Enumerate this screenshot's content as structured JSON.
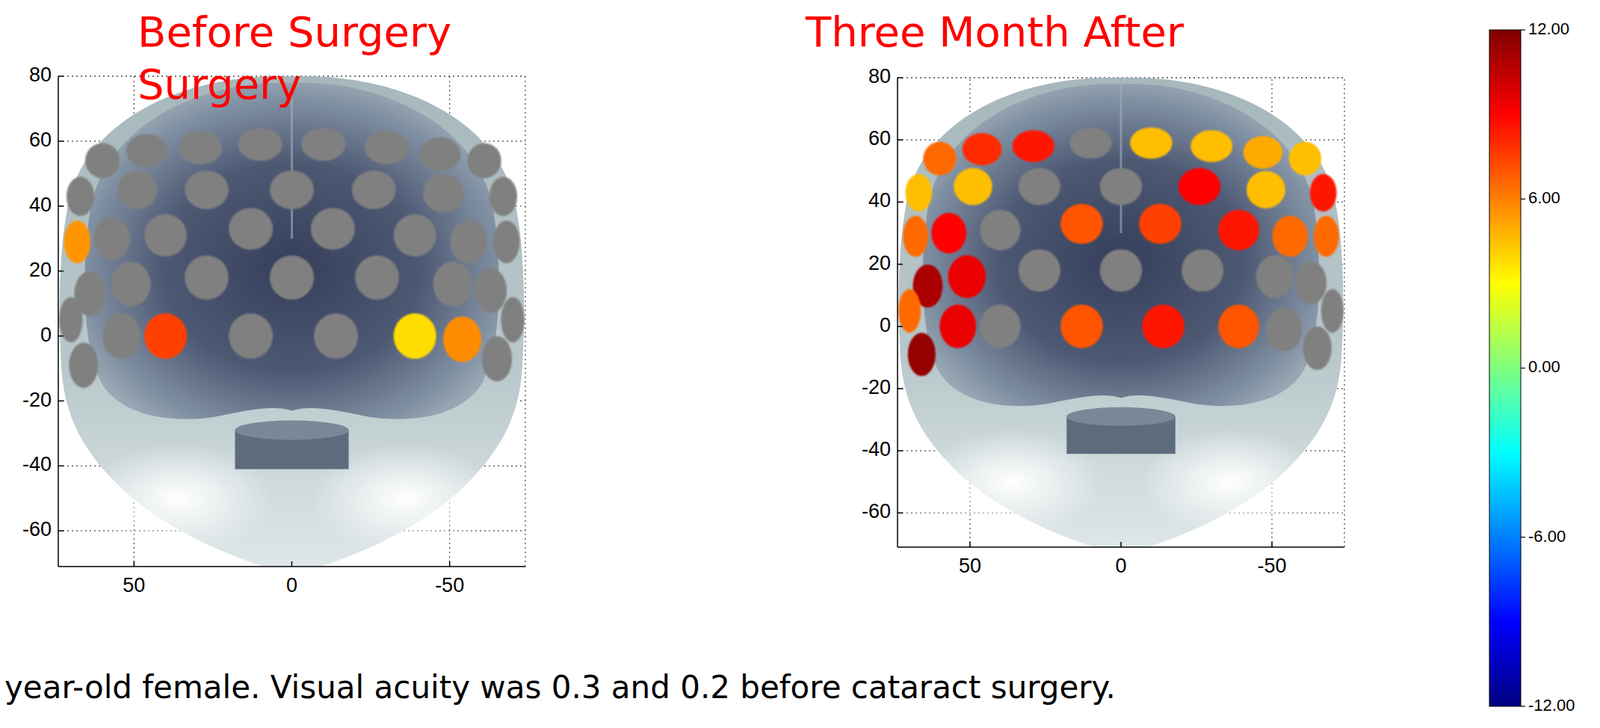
{
  "chart_data": [
    {
      "type": "topographic_map",
      "title": "Before Surgery\nSurgery",
      "x": [
        40,
        13,
        -14,
        -39,
        27,
        0,
        -27,
        40,
        13,
        -13,
        -39,
        27,
        0,
        -26,
        46,
        29,
        10,
        -10,
        -30,
        -47,
        49,
        -48,
        54,
        -54,
        51,
        -51,
        57,
        -56,
        64,
        -63,
        66,
        -65,
        70,
        -70,
        68,
        -68,
        67,
        -67,
        60,
        -61
      ],
      "y": [
        0,
        0,
        0,
        0,
        18,
        18,
        18,
        31,
        33,
        33,
        31,
        45,
        45,
        45,
        57,
        58,
        59,
        59,
        58,
        56,
        45,
        44,
        0,
        -1,
        16,
        16,
        30,
        29,
        13,
        14,
        -9,
        -7,
        5,
        5,
        29,
        29,
        43,
        43,
        54,
        54
      ],
      "values": [
        7.5,
        null,
        null,
        3.8,
        null,
        null,
        null,
        null,
        null,
        null,
        null,
        null,
        null,
        null,
        null,
        null,
        null,
        null,
        null,
        null,
        null,
        null,
        null,
        5.7,
        null,
        null,
        null,
        null,
        null,
        null,
        null,
        null,
        null,
        null,
        5.5,
        null,
        null,
        null,
        null,
        null
      ],
      "xlim": [
        74,
        -74
      ],
      "ylim": [
        -71,
        80
      ],
      "xticks": [
        50,
        0,
        -50
      ],
      "yticks": [
        -60,
        -40,
        -20,
        0,
        20,
        40,
        60,
        80
      ],
      "grid": true
    },
    {
      "type": "topographic_map",
      "title": "Three Month After",
      "x": [
        40,
        13,
        -14,
        -39,
        27,
        0,
        -27,
        40,
        13,
        -13,
        -39,
        27,
        0,
        -26,
        46,
        29,
        10,
        -10,
        -30,
        -47,
        49,
        -48,
        54,
        -54,
        51,
        -51,
        57,
        -56,
        64,
        -63,
        66,
        -65,
        70,
        -70,
        68,
        -68,
        67,
        -67,
        60,
        -61
      ],
      "y": [
        0,
        0,
        0,
        0,
        18,
        18,
        18,
        31,
        33,
        33,
        31,
        45,
        45,
        45,
        57,
        58,
        59,
        59,
        58,
        56,
        45,
        44,
        0,
        -1,
        16,
        16,
        30,
        29,
        13,
        14,
        -9,
        -7,
        5,
        5,
        29,
        29,
        43,
        43,
        54,
        54
      ],
      "values": [
        null,
        7,
        8.5,
        7,
        null,
        null,
        null,
        null,
        7,
        7.5,
        8.5,
        null,
        null,
        9,
        8,
        8.5,
        null,
        4.5,
        4.5,
        5,
        4.5,
        4.5,
        9.5,
        null,
        9.5,
        null,
        9,
        6.5,
        11,
        null,
        11.5,
        null,
        6.5,
        null,
        6.5,
        6.5,
        4.5,
        8.5,
        6.5,
        4.5
      ],
      "xlim": [
        74,
        -74
      ],
      "ylim": [
        -71,
        80
      ],
      "xticks": [
        50,
        0,
        -50
      ],
      "yticks": [
        -60,
        -40,
        -20,
        0,
        20,
        40,
        60,
        80
      ],
      "grid": true
    }
  ],
  "colorbar": {
    "range": [
      -12,
      12
    ],
    "ticks": [
      {
        "value": 12,
        "label": "12.00"
      },
      {
        "value": 6,
        "label": "6.00"
      },
      {
        "value": 0,
        "label": "0.00"
      },
      {
        "value": -6,
        "label": "-6.00"
      },
      {
        "value": -12,
        "label": "-12.00"
      }
    ]
  },
  "caption": "year-old female. Visual acuity was 0.3 and 0.2 before cataract surgery."
}
